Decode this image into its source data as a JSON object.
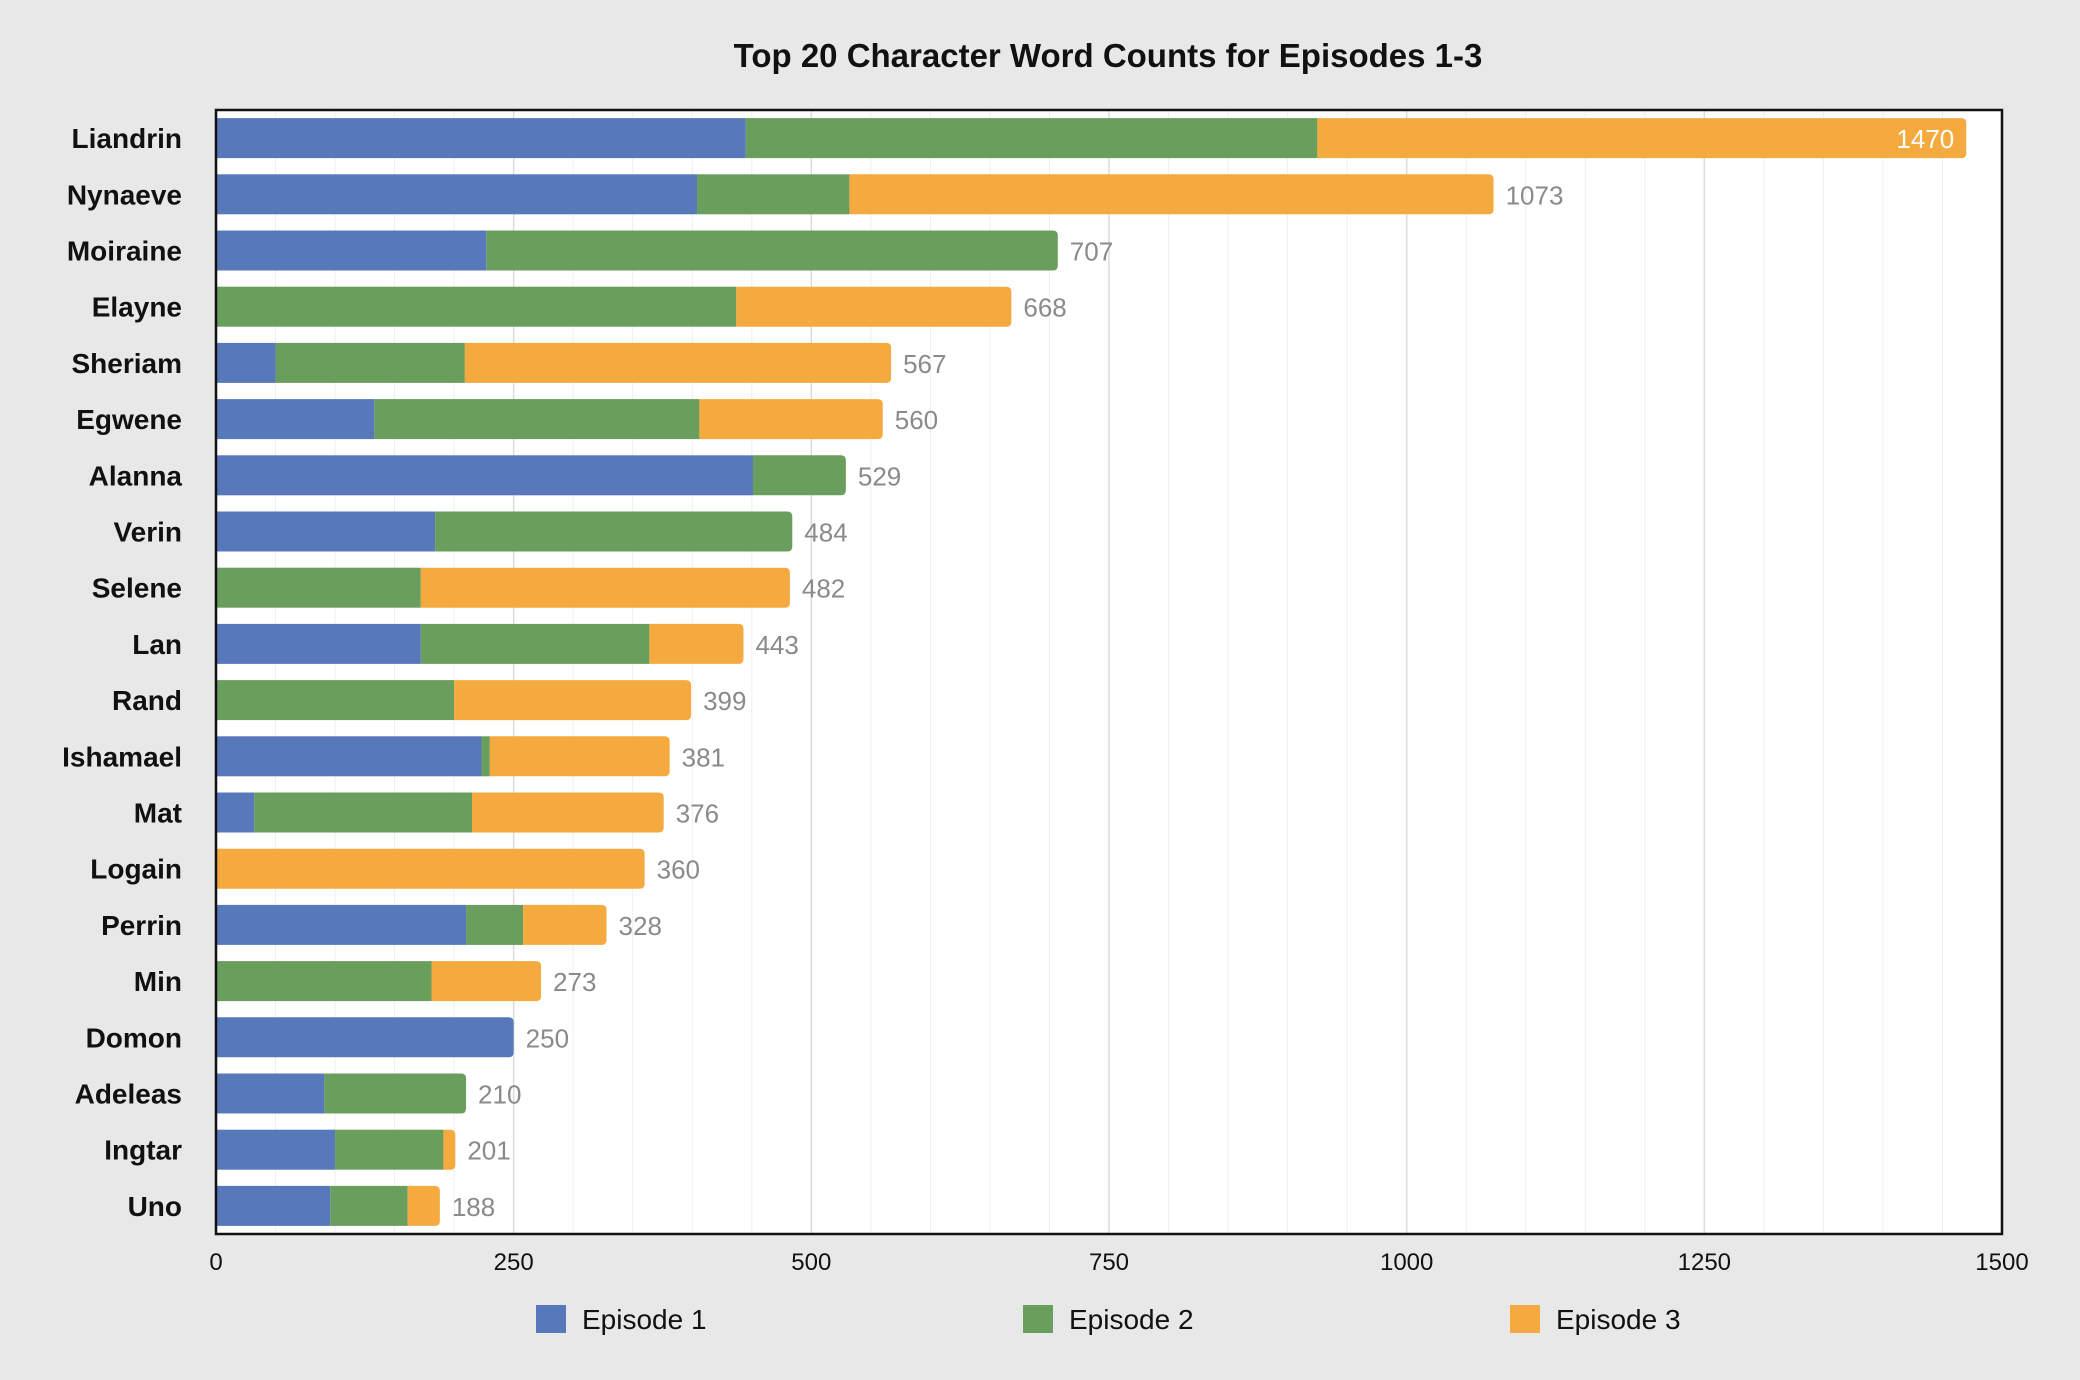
{
  "chart_data": {
    "type": "bar",
    "orientation": "horizontal",
    "stacked": true,
    "title": "Top 20 Character Word Counts for Episodes 1-3",
    "xlabel": "",
    "ylabel": "",
    "xlim": [
      0,
      1500
    ],
    "xticks": [
      0,
      250,
      500,
      750,
      1000,
      1250,
      1500
    ],
    "grid": true,
    "legend_position": "bottom",
    "categories": [
      "Liandrin",
      "Nynaeve",
      "Moiraine",
      "Elayne",
      "Sheriam",
      "Egwene",
      "Alanna",
      "Verin",
      "Selene",
      "Lan",
      "Rand",
      "Ishamael",
      "Mat",
      "Logain",
      "Perrin",
      "Min",
      "Domon",
      "Adeleas",
      "Ingtar",
      "Uno"
    ],
    "series": [
      {
        "name": "Episode 1",
        "color": "#5779bc",
        "values": [
          445,
          404,
          227,
          0,
          50,
          133,
          451,
          184,
          0,
          172,
          0,
          223,
          32,
          0,
          210,
          0,
          250,
          91,
          100,
          96
        ]
      },
      {
        "name": "Episode 2",
        "color": "#6a9e5d",
        "values": [
          480,
          128,
          480,
          437,
          159,
          273,
          78,
          300,
          172,
          192,
          200,
          7,
          183,
          0,
          48,
          181,
          0,
          119,
          91,
          65
        ]
      },
      {
        "name": "Episode 3",
        "color": "#f5aa3f",
        "values": [
          545,
          541,
          0,
          231,
          358,
          154,
          0,
          0,
          310,
          79,
          199,
          151,
          161,
          360,
          70,
          92,
          0,
          0,
          10,
          27
        ]
      }
    ],
    "totals": [
      1470,
      1073,
      707,
      668,
      567,
      560,
      529,
      484,
      482,
      443,
      399,
      381,
      376,
      360,
      328,
      273,
      250,
      210,
      201,
      188
    ]
  }
}
